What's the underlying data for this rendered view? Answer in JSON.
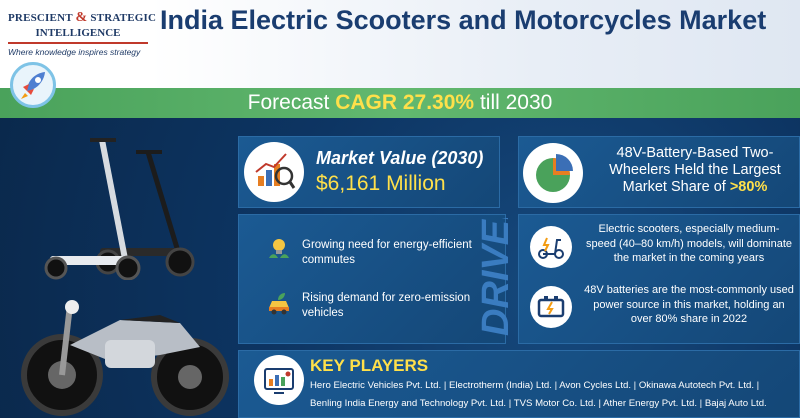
{
  "header": {
    "logo_line1_a": "PRESCIENT",
    "logo_amp": "&",
    "logo_line1_b": "STRATEGIC",
    "logo_line2": "INTELLIGENCE",
    "logo_tagline": "Where knowledge inspires strategy",
    "title": "India Electric Scooters and Motorcycles Market"
  },
  "forecast": {
    "prefix": "Forecast",
    "highlight": "CAGR 27.30%",
    "suffix": "till 2030"
  },
  "market_value": {
    "label": "Market Value (2030)",
    "value": "$6,161 Million"
  },
  "battery_share": {
    "text": "48V-Battery-Based Two-Wheelers Held the Largest Market Share of",
    "highlight": ">80%"
  },
  "drivers": {
    "heading": "DRIVERS",
    "items": [
      {
        "text": "Growing need for energy-efficient commutes",
        "icon": "bulb-leaf-icon"
      },
      {
        "text": "Rising demand for zero-emission vehicles",
        "icon": "eco-car-icon"
      }
    ]
  },
  "segments": [
    {
      "text": "Electric scooters, especially medium-speed (40–80 km/h) models, will dominate the market in the coming years",
      "icon": "charging-scooter-icon"
    },
    {
      "text": "48V batteries are the most-commonly used power source in this market, holding an over 80% share in 2022",
      "icon": "battery-icon"
    }
  ],
  "key_players": {
    "title": "KEY PLAYERS",
    "line1": "Hero Electric Vehicles Pvt. Ltd.  |  Electrotherm (India) Ltd.  |  Avon Cycles Ltd.  |  Okinawa Autotech Pvt. Ltd.  |",
    "line2": "Benling India Energy and Technology Pvt. Ltd.  |  TVS Motor Co. Ltd.  |  Ather Energy Pvt. Ltd.  |  Bajaj Auto Ltd."
  },
  "colors": {
    "navy": "#0d3563",
    "panel": "#1b5a93",
    "green": "#4aa25b",
    "yellow": "#ffe04a",
    "title_blue": "#1a3d70",
    "logo_red": "#c0392b"
  }
}
